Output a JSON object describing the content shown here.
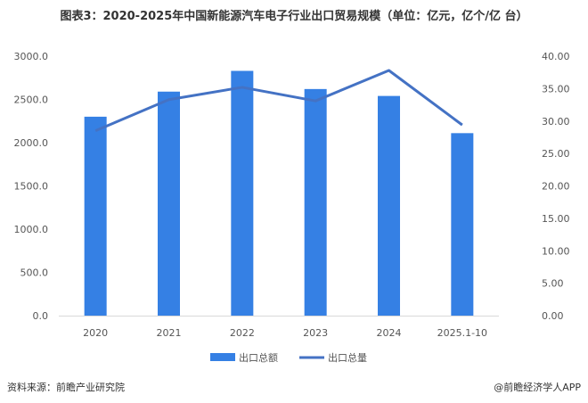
{
  "chart_data": {
    "type": "bar",
    "title": "图表3：2020-2025年中国新能源汽车电子行业出口贸易规模（单位：亿元，亿个/亿 台）",
    "categories": [
      "2020",
      "2021",
      "2022",
      "2023",
      "2024",
      "2025.1-10"
    ],
    "series": [
      {
        "name": "出口总额",
        "type": "bar",
        "axis": "left",
        "color": "#3580E4",
        "values": [
          2300,
          2590,
          2830,
          2620,
          2540,
          2110
        ]
      },
      {
        "name": "出口总量",
        "type": "line",
        "axis": "right",
        "color": "#4472C4",
        "values": [
          28.5,
          33.3,
          35.2,
          33.1,
          37.8,
          29.4
        ]
      }
    ],
    "left_axis": {
      "ylim": [
        0,
        3000
      ],
      "ticks": [
        "0.0",
        "500.0",
        "1000.0",
        "1500.0",
        "2000.0",
        "2500.0",
        "3000.0"
      ]
    },
    "right_axis": {
      "ylim": [
        0,
        40
      ],
      "ticks": [
        "0.00",
        "5.00",
        "10.00",
        "15.00",
        "20.00",
        "25.00",
        "30.00",
        "35.00",
        "40.00"
      ]
    },
    "legend_position": "bottom",
    "grid": false
  },
  "footer": {
    "source": "资料来源：前瞻产业研究院",
    "brand": "@前瞻经济学人APP"
  }
}
